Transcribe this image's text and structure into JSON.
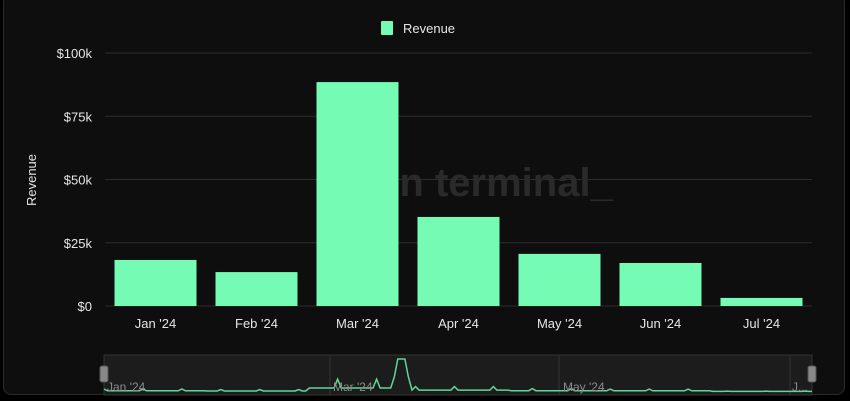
{
  "chart_data": {
    "type": "bar",
    "title": "",
    "xlabel": "",
    "ylabel": "Revenue",
    "categories": [
      "Jan '24",
      "Feb '24",
      "Mar '24",
      "Apr '24",
      "May '24",
      "Jun '24",
      "Jul '24"
    ],
    "series": [
      {
        "name": "Revenue",
        "values": [
          18200,
          13400,
          88500,
          35200,
          20600,
          17000,
          3200
        ],
        "color": "#76fbb4"
      }
    ],
    "ylim": [
      0,
      100000
    ],
    "yticks": [
      0,
      25000,
      50000,
      75000,
      100000
    ],
    "ytick_labels": [
      "$0",
      "$25k",
      "$50k",
      "$75k",
      "$100k"
    ],
    "grid": true,
    "legend": "top-center",
    "watermark": "token terminal_",
    "navigator": {
      "labels": [
        "Jan '24",
        "Mar '24",
        "May '24",
        "J..."
      ]
    }
  }
}
